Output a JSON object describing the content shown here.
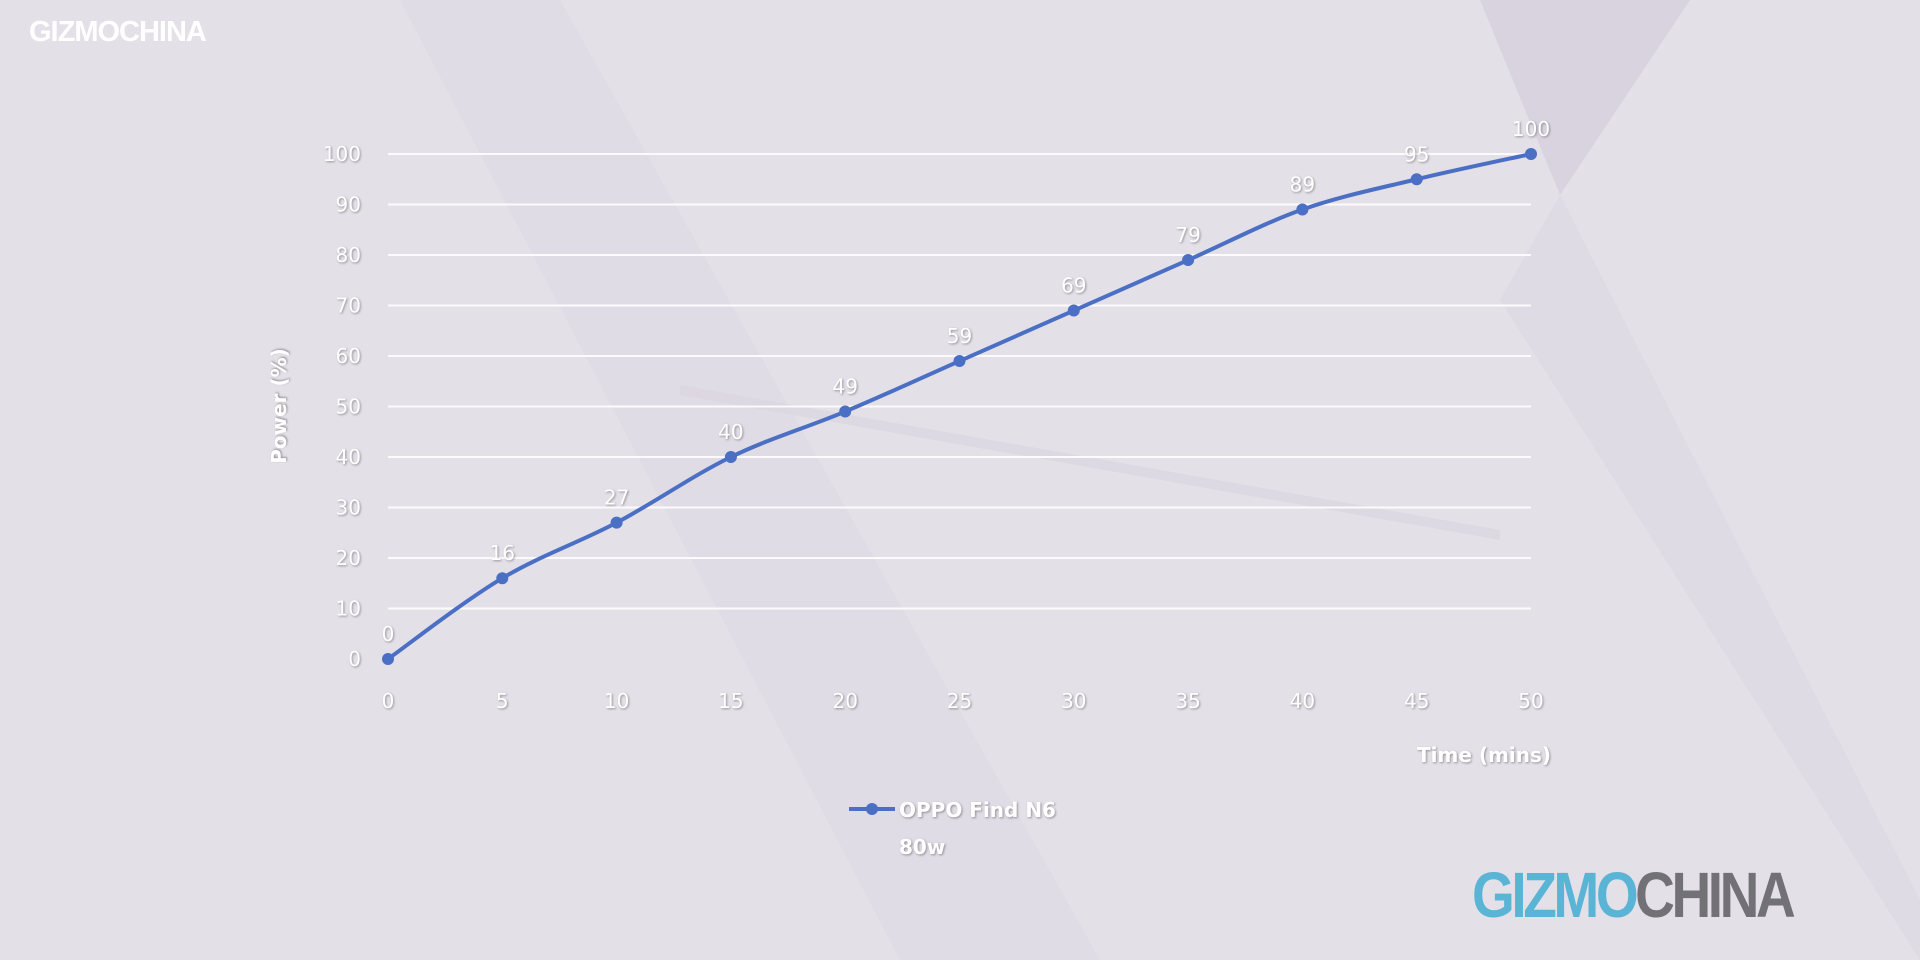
{
  "watermarks": {
    "top_logo": "GIZMOCHINA",
    "bottom_logo_part1": "GIZMO",
    "bottom_logo_part2": "CHINA"
  },
  "colors": {
    "series": "#4a6fc4",
    "background": "#e4e0e8",
    "grid": "#ffffff",
    "logo_blue": "#5ab4d6",
    "logo_gray": "#727176"
  },
  "chart_data": {
    "type": "line",
    "title": "",
    "xlabel": "Time (mins)",
    "ylabel": "Power (%)",
    "x": [
      0,
      5,
      10,
      15,
      20,
      25,
      30,
      35,
      40,
      45,
      50
    ],
    "xticks": [
      "0",
      "5",
      "10",
      "15",
      "20",
      "25",
      "30",
      "35",
      "40",
      "45",
      "50"
    ],
    "yticks": [
      "0",
      "10",
      "20",
      "30",
      "40",
      "50",
      "60",
      "70",
      "80",
      "90",
      "100"
    ],
    "xlim": [
      0,
      50
    ],
    "ylim": [
      0,
      100
    ],
    "grid": "horizontal",
    "legend_placement": "bottom",
    "series": [
      {
        "name": "OPPO Find N6",
        "subtitle": "80w",
        "values": [
          0,
          16,
          27,
          40,
          49,
          59,
          69,
          79,
          89,
          95,
          100
        ],
        "data_labels": [
          "0",
          "16",
          "27",
          "40",
          "49",
          "59",
          "69",
          "79",
          "89",
          "95",
          "100"
        ]
      }
    ]
  }
}
